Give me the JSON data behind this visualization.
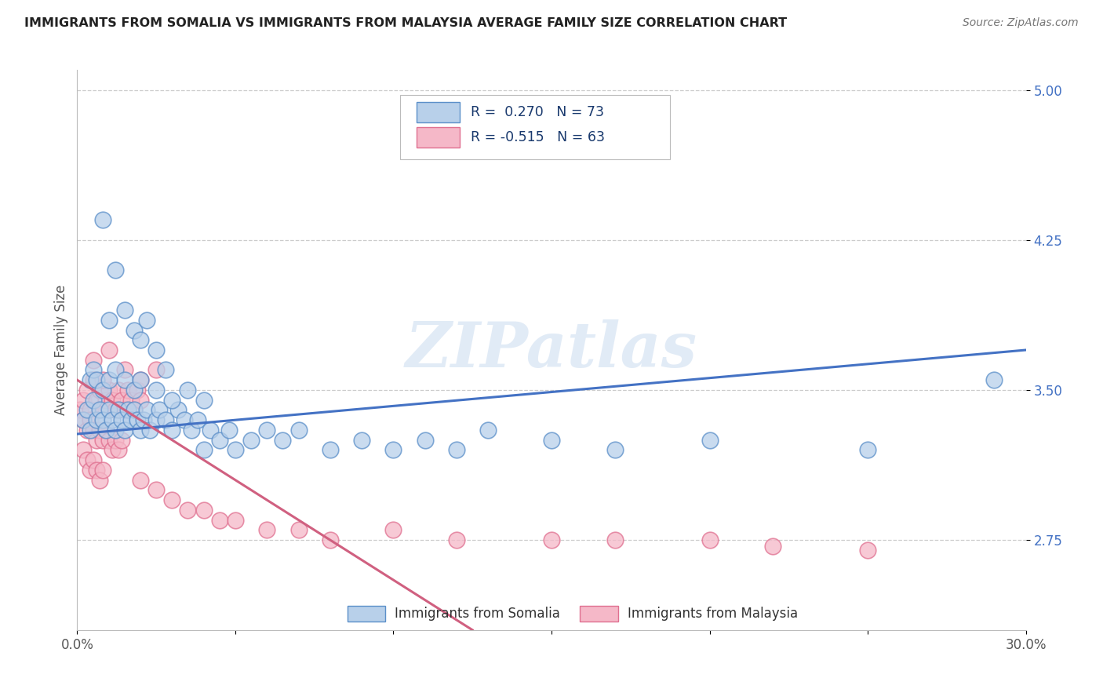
{
  "title": "IMMIGRANTS FROM SOMALIA VS IMMIGRANTS FROM MALAYSIA AVERAGE FAMILY SIZE CORRELATION CHART",
  "source": "Source: ZipAtlas.com",
  "ylabel": "Average Family Size",
  "xlim": [
    0.0,
    0.3
  ],
  "ylim": [
    2.3,
    5.1
  ],
  "yticks": [
    2.75,
    3.5,
    4.25,
    5.0
  ],
  "xticks": [
    0.0,
    0.05,
    0.1,
    0.15,
    0.2,
    0.25,
    0.3
  ],
  "xticklabels": [
    "0.0%",
    "",
    "",
    "",
    "",
    "",
    "30.0%"
  ],
  "background_color": "#ffffff",
  "grid_color": "#cccccc",
  "somalia_fill": "#b8d0ea",
  "malaysia_fill": "#f5b8c8",
  "somalia_edge": "#5b8fc9",
  "malaysia_edge": "#e07090",
  "somalia_line": "#4472c4",
  "malaysia_line": "#d06080",
  "watermark": "ZIPatlas",
  "somalia_x": [
    0.002,
    0.003,
    0.004,
    0.005,
    0.006,
    0.007,
    0.008,
    0.009,
    0.01,
    0.011,
    0.012,
    0.013,
    0.014,
    0.015,
    0.016,
    0.017,
    0.018,
    0.019,
    0.02,
    0.021,
    0.022,
    0.023,
    0.025,
    0.026,
    0.028,
    0.03,
    0.032,
    0.034,
    0.036,
    0.038,
    0.04,
    0.042,
    0.045,
    0.048,
    0.05,
    0.055,
    0.06,
    0.065,
    0.07,
    0.08,
    0.09,
    0.1,
    0.11,
    0.12,
    0.13,
    0.15,
    0.17,
    0.2,
    0.25,
    0.004,
    0.005,
    0.006,
    0.008,
    0.01,
    0.012,
    0.015,
    0.018,
    0.02,
    0.025,
    0.03,
    0.035,
    0.04,
    0.008,
    0.01,
    0.012,
    0.015,
    0.018,
    0.02,
    0.022,
    0.025,
    0.028,
    0.29
  ],
  "somalia_y": [
    3.35,
    3.4,
    3.3,
    3.45,
    3.35,
    3.4,
    3.35,
    3.3,
    3.4,
    3.35,
    3.3,
    3.4,
    3.35,
    3.3,
    3.4,
    3.35,
    3.4,
    3.35,
    3.3,
    3.35,
    3.4,
    3.3,
    3.35,
    3.4,
    3.35,
    3.3,
    3.4,
    3.35,
    3.3,
    3.35,
    3.2,
    3.3,
    3.25,
    3.3,
    3.2,
    3.25,
    3.3,
    3.25,
    3.3,
    3.2,
    3.25,
    3.2,
    3.25,
    3.2,
    3.3,
    3.25,
    3.2,
    3.25,
    3.2,
    3.55,
    3.6,
    3.55,
    3.5,
    3.55,
    3.6,
    3.55,
    3.5,
    3.55,
    3.5,
    3.45,
    3.5,
    3.45,
    4.35,
    3.85,
    4.1,
    3.9,
    3.8,
    3.75,
    3.85,
    3.7,
    3.6,
    3.55
  ],
  "malaysia_x": [
    0.001,
    0.002,
    0.003,
    0.004,
    0.005,
    0.006,
    0.007,
    0.008,
    0.009,
    0.01,
    0.011,
    0.012,
    0.013,
    0.014,
    0.015,
    0.016,
    0.017,
    0.018,
    0.019,
    0.02,
    0.002,
    0.003,
    0.004,
    0.005,
    0.006,
    0.007,
    0.008,
    0.009,
    0.01,
    0.011,
    0.012,
    0.013,
    0.014,
    0.002,
    0.003,
    0.004,
    0.005,
    0.006,
    0.007,
    0.008,
    0.02,
    0.025,
    0.03,
    0.035,
    0.04,
    0.045,
    0.05,
    0.06,
    0.07,
    0.08,
    0.1,
    0.12,
    0.15,
    0.17,
    0.2,
    0.22,
    0.25,
    0.005,
    0.008,
    0.01,
    0.015,
    0.02,
    0.025
  ],
  "malaysia_y": [
    3.4,
    3.45,
    3.5,
    3.4,
    3.55,
    3.45,
    3.5,
    3.4,
    3.45,
    3.5,
    3.45,
    3.4,
    3.5,
    3.45,
    3.4,
    3.5,
    3.45,
    3.4,
    3.5,
    3.45,
    3.35,
    3.3,
    3.35,
    3.3,
    3.25,
    3.3,
    3.25,
    3.3,
    3.25,
    3.2,
    3.25,
    3.2,
    3.25,
    3.2,
    3.15,
    3.1,
    3.15,
    3.1,
    3.05,
    3.1,
    3.05,
    3.0,
    2.95,
    2.9,
    2.9,
    2.85,
    2.85,
    2.8,
    2.8,
    2.75,
    2.8,
    2.75,
    2.75,
    2.75,
    2.75,
    2.72,
    2.7,
    3.65,
    3.55,
    3.7,
    3.6,
    3.55,
    3.6
  ]
}
